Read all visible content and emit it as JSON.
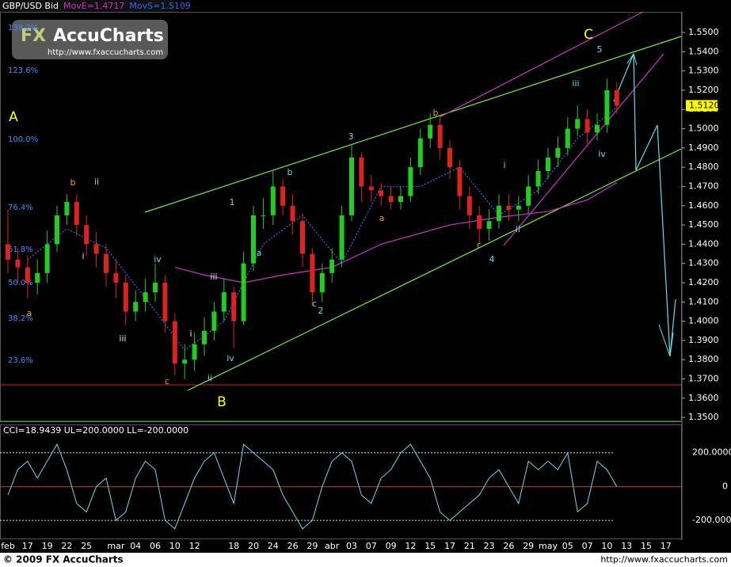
{
  "chart_data": {
    "type": "candlestick",
    "title": "GBP/USD Bid",
    "up_color": "#22cc22",
    "down_color": "#dd2222",
    "categories": [
      "feb",
      null,
      "17",
      null,
      "19",
      null,
      "22",
      null,
      "25",
      null,
      null,
      "mar",
      null,
      "04",
      null,
      "06",
      null,
      "10",
      null,
      "12",
      null,
      null,
      null,
      "18",
      null,
      "20",
      null,
      "24",
      null,
      "26",
      null,
      "29",
      null,
      "abr",
      null,
      "03",
      null,
      "07",
      null,
      "09",
      null,
      "12",
      null,
      "15",
      null,
      "17",
      null,
      "21",
      null,
      "23",
      null,
      "26",
      null,
      "29",
      null,
      "may",
      null,
      "05",
      null,
      "07",
      null,
      "10",
      null,
      "13",
      null,
      "15",
      null,
      "17"
    ],
    "open": [
      1.44,
      1.432,
      1.428,
      1.42,
      1.425,
      1.44,
      1.455,
      1.462,
      1.45,
      1.44,
      1.435,
      1.425,
      1.42,
      1.405,
      1.41,
      1.415,
      1.42,
      1.4,
      1.378,
      1.38,
      1.388,
      1.395,
      1.405,
      1.415,
      1.4,
      1.43,
      1.455,
      1.455,
      1.47,
      1.46,
      1.452,
      1.435,
      1.415,
      1.425,
      1.432,
      1.455,
      1.485,
      1.47,
      1.468,
      1.465,
      1.462,
      1.465,
      1.48,
      1.495,
      1.502,
      1.49,
      1.48,
      1.465,
      1.455,
      1.448,
      1.452,
      1.46,
      1.458,
      1.46,
      1.47,
      1.478,
      1.485,
      1.49,
      1.5,
      1.505,
      1.498,
      1.502,
      1.52,
      null,
      null,
      null,
      null,
      null
    ],
    "high": [
      1.458,
      1.438,
      1.434,
      1.432,
      1.447,
      1.46,
      1.466,
      1.466,
      1.455,
      1.446,
      1.44,
      1.432,
      1.424,
      1.416,
      1.422,
      1.43,
      1.424,
      1.404,
      1.388,
      1.394,
      1.402,
      1.41,
      1.422,
      1.418,
      1.436,
      1.46,
      1.464,
      1.478,
      1.474,
      1.466,
      1.456,
      1.438,
      1.43,
      1.438,
      1.46,
      1.492,
      1.488,
      1.476,
      1.472,
      1.47,
      1.47,
      1.485,
      1.5,
      1.508,
      1.506,
      1.494,
      1.484,
      1.47,
      1.46,
      1.458,
      1.466,
      1.466,
      1.465,
      1.476,
      1.484,
      1.49,
      1.496,
      1.506,
      1.512,
      1.51,
      1.508,
      1.526,
      1.524,
      null,
      null,
      null,
      null,
      null
    ],
    "low": [
      1.425,
      1.42,
      1.412,
      1.414,
      1.42,
      1.436,
      1.45,
      1.444,
      1.434,
      1.428,
      1.418,
      1.412,
      1.398,
      1.4,
      1.405,
      1.41,
      1.394,
      1.372,
      1.37,
      1.374,
      1.382,
      1.39,
      1.4,
      1.386,
      1.398,
      1.426,
      1.448,
      1.45,
      1.455,
      1.445,
      1.428,
      1.408,
      1.41,
      1.42,
      1.428,
      1.452,
      1.462,
      1.462,
      1.46,
      1.458,
      1.458,
      1.462,
      1.476,
      1.49,
      1.484,
      1.474,
      1.458,
      1.448,
      1.44,
      1.442,
      1.448,
      1.452,
      1.452,
      1.456,
      1.466,
      1.474,
      1.48,
      1.486,
      1.496,
      1.492,
      1.494,
      1.498,
      1.508,
      null,
      null,
      null,
      null,
      null
    ],
    "close": [
      1.432,
      1.428,
      1.42,
      1.425,
      1.44,
      1.455,
      1.462,
      1.45,
      1.44,
      1.435,
      1.425,
      1.42,
      1.405,
      1.41,
      1.415,
      1.42,
      1.4,
      1.378,
      1.38,
      1.388,
      1.395,
      1.405,
      1.415,
      1.4,
      1.43,
      1.455,
      1.455,
      1.47,
      1.46,
      1.452,
      1.435,
      1.415,
      1.425,
      1.432,
      1.455,
      1.485,
      1.47,
      1.468,
      1.465,
      1.462,
      1.465,
      1.48,
      1.495,
      1.502,
      1.49,
      1.48,
      1.465,
      1.455,
      1.448,
      1.452,
      1.46,
      1.458,
      1.46,
      1.47,
      1.478,
      1.485,
      1.49,
      1.5,
      1.505,
      1.498,
      1.502,
      1.52,
      1.512,
      null,
      null,
      null,
      null,
      null
    ],
    "overlays": [
      {
        "name": "MovE=1.4717",
        "color": "#cc33cc",
        "dashed": false,
        "x": [
          17,
          20,
          24,
          28,
          33,
          38,
          45,
          50,
          55,
          59,
          62
        ],
        "values": [
          1.428,
          1.424,
          1.42,
          1.424,
          1.428,
          1.44,
          1.45,
          1.454,
          1.457,
          1.463,
          1.472
        ]
      },
      {
        "name": "MovS=1.5109",
        "color": "#3366ff",
        "dashed": true,
        "x": [
          2,
          6,
          10,
          14,
          18,
          22,
          26,
          30,
          34,
          38,
          42,
          46,
          50,
          54,
          58,
          62
        ],
        "values": [
          1.432,
          1.448,
          1.438,
          1.412,
          1.385,
          1.4,
          1.44,
          1.455,
          1.43,
          1.47,
          1.47,
          1.48,
          1.455,
          1.468,
          1.495,
          1.511
        ]
      }
    ],
    "ylim": [
      1.348,
      1.5607
    ],
    "yticks": [
      {
        "value": 1.35,
        "label": "1.3500"
      },
      {
        "value": 1.36,
        "label": "1.3600"
      },
      {
        "value": 1.37,
        "label": "1.3700"
      },
      {
        "value": 1.38,
        "label": "1.3800"
      },
      {
        "value": 1.39,
        "label": "1.3900"
      },
      {
        "value": 1.4,
        "label": "1.4000"
      },
      {
        "value": 1.41,
        "label": "1.4100"
      },
      {
        "value": 1.42,
        "label": "1.4200"
      },
      {
        "value": 1.43,
        "label": "1.4300"
      },
      {
        "value": 1.44,
        "label": "1.4400"
      },
      {
        "value": 1.45,
        "label": "1.4500"
      },
      {
        "value": 1.46,
        "label": "1.4600"
      },
      {
        "value": 1.47,
        "label": "1.4700"
      },
      {
        "value": 1.48,
        "label": "1.4800"
      },
      {
        "value": 1.49,
        "label": "1.4900"
      },
      {
        "value": 1.5,
        "label": "1.5000"
      },
      {
        "value": 1.51,
        "label": "1.5100"
      },
      {
        "value": 1.52,
        "label": "1.5200"
      },
      {
        "value": 1.53,
        "label": "1.5300"
      },
      {
        "value": 1.54,
        "label": "1.5400"
      },
      {
        "value": 1.55,
        "label": "1.5500"
      }
    ],
    "last_price": {
      "value": 1.512,
      "label": "1.5120"
    },
    "annotations": [
      {
        "text": "A",
        "color": "#ffff00"
      },
      {
        "text": "B",
        "color": "#ffff00"
      },
      {
        "text": "C",
        "color": "#ffff00"
      },
      {
        "text": "b",
        "color": "#ff9900"
      },
      {
        "text": "a",
        "color": "#ff9900"
      },
      {
        "text": "c",
        "color": "#ff9900"
      },
      {
        "text": "a",
        "color": "#ff9900"
      },
      {
        "text": "b",
        "color": "#ff9900"
      },
      {
        "text": "c",
        "color": "#ff9900"
      },
      {
        "text": "i",
        "color": "#ddeeff"
      },
      {
        "text": "ii",
        "color": "#66ddee"
      },
      {
        "text": "iii",
        "color": "#ddeeff"
      },
      {
        "text": "iv",
        "color": "#66ddee"
      },
      {
        "text": "i",
        "color": "#ddeeff"
      },
      {
        "text": "ii",
        "color": "#66ddee"
      },
      {
        "text": "iii",
        "color": "#ddeeff"
      },
      {
        "text": "iv",
        "color": "#66ddee"
      },
      {
        "text": "1",
        "color": "#66ddee"
      },
      {
        "text": "a",
        "color": "#66ddee"
      },
      {
        "text": "b",
        "color": "#66ddee"
      },
      {
        "text": "c",
        "color": "#66ddee"
      },
      {
        "text": "2",
        "color": "#66ddee"
      },
      {
        "text": "3",
        "color": "#66ddee"
      },
      {
        "text": "4",
        "color": "#66ddee"
      },
      {
        "text": "i",
        "color": "#66ddee"
      },
      {
        "text": "ii",
        "color": "#66ddee"
      },
      {
        "text": "iii",
        "color": "#66ddee"
      },
      {
        "text": "iv",
        "color": "#66ddee"
      },
      {
        "text": "5",
        "color": "#66ddee"
      }
    ],
    "fib_labels": [
      "138.2%",
      "123.6%",
      "100.0%",
      "76.4%",
      "61.8%",
      "50.0%",
      "38.2%",
      "23.6%"
    ],
    "fib_color": "#3f8fff",
    "logo": {
      "mark": "FX",
      "name": "AccuCharts",
      "url": "http://www.fxaccucharts.com"
    },
    "indicator": {
      "type": "line",
      "label": "CCI=18.9439 UL=200.0000 LL=-200.0000",
      "color": "#66ddee",
      "values": [
        -50,
        100,
        150,
        50,
        150,
        250,
        100,
        -100,
        -150,
        0,
        50,
        -200,
        -150,
        50,
        150,
        100,
        -200,
        -250,
        -100,
        50,
        150,
        200,
        50,
        -100,
        250,
        200,
        150,
        100,
        -50,
        -150,
        -250,
        -200,
        0,
        150,
        200,
        150,
        -50,
        -100,
        50,
        100,
        200,
        250,
        150,
        50,
        -150,
        -200,
        -150,
        -100,
        -50,
        50,
        100,
        0,
        -100,
        150,
        100,
        150,
        100,
        200,
        -150,
        -100,
        150,
        100,
        0,
        null,
        null,
        null,
        null,
        null
      ],
      "ylim": [
        -307,
        358
      ],
      "yticks": [
        {
          "value": 200,
          "label": "200.0000"
        },
        0,
        {
          "value": -200,
          "label": "-200.0000"
        }
      ]
    },
    "copyright": "© 2009 FX AccuCharts",
    "url": "http://www.fxaccucharts.com"
  }
}
